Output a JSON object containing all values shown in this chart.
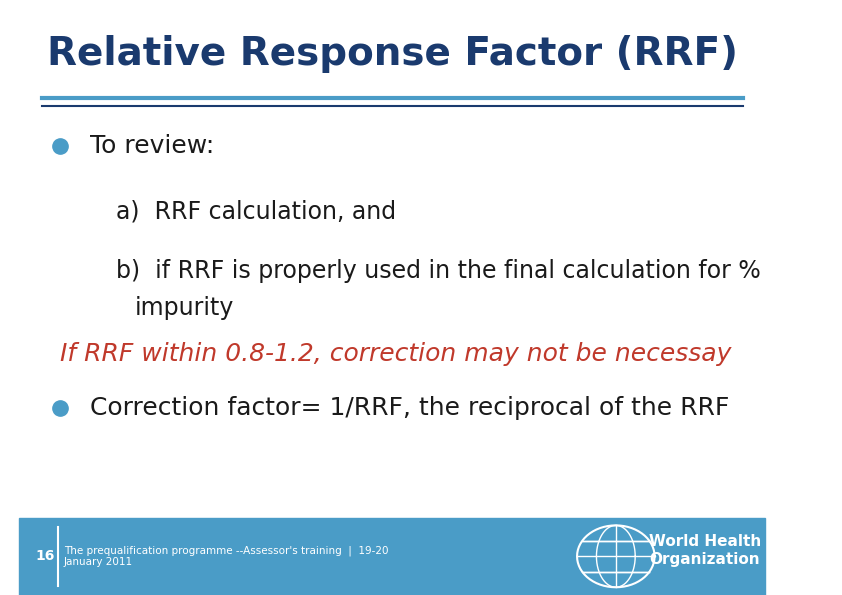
{
  "title": "Relative Response Factor (RRF)",
  "title_color": "#1a3a6e",
  "title_fontsize": 28,
  "bg_color": "#ffffff",
  "footer_bg_color": "#4a9cc7",
  "footer_text1": "16",
  "footer_text2": "The prequalification programme --Assessor's training  |  19-20\nJanuary 2011",
  "footer_who_text": "World Health\nOrganization",
  "header_line_color1": "#4a9cc7",
  "header_line_color2": "#1a3a6e",
  "bullet_color": "#4a9cc7",
  "body_text_color": "#1a1a1a",
  "highlight_text_color": "#c0392b",
  "bullet1": "To review:",
  "sub_a": "a)  RRF calculation, and",
  "sub_b_line1": "b)  if RRF is properly used in the final calculation for %",
  "sub_b_line2": "impurity",
  "highlight_line": "If RRF within 0.8-1.2, correction may not be necessay",
  "bullet2": "Correction factor= 1/RRF, the reciprocal of the RRF",
  "body_fontsize": 18,
  "sub_fontsize": 17
}
